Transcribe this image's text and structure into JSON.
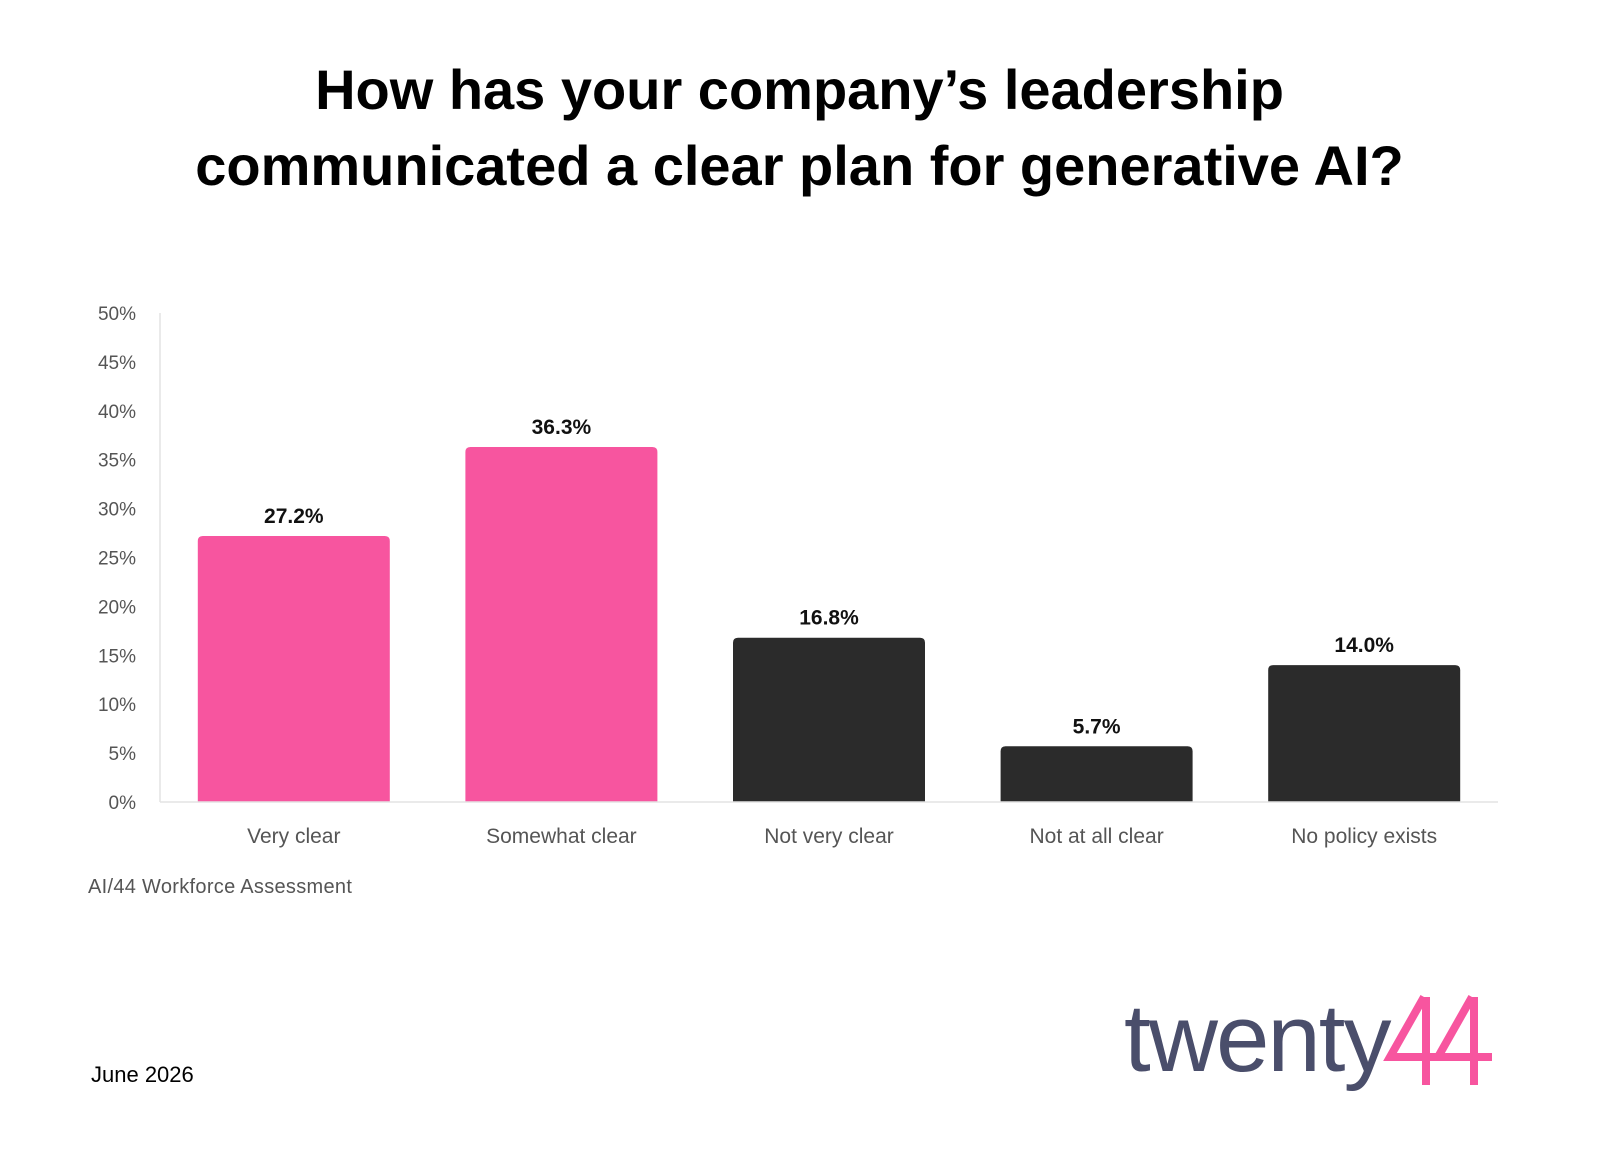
{
  "title": {
    "line1": "How has your company’s leadership",
    "line2": "communicated a clear plan for generative AI?"
  },
  "chart_data": {
    "type": "bar",
    "categories": [
      "Very clear",
      "Somewhat clear",
      "Not very clear",
      "Not at all clear",
      "No policy exists"
    ],
    "values": [
      27.2,
      36.3,
      16.8,
      5.7,
      14.0
    ],
    "value_labels": [
      "27.2%",
      "36.3%",
      "16.8%",
      "5.7%",
      "14.0%"
    ],
    "bar_colors": [
      "#f7559f",
      "#f7559f",
      "#2b2b2b",
      "#2b2b2b",
      "#2b2b2b"
    ],
    "ylim": [
      0,
      50
    ],
    "yticks": [
      "0%",
      "5%",
      "10%",
      "15%",
      "20%",
      "25%",
      "30%",
      "35%",
      "40%",
      "45%",
      "50%"
    ],
    "grid": false,
    "xlabel": "",
    "ylabel": ""
  },
  "source_note": "AI/44 Workforce Assessment",
  "date_label": "June 2026",
  "logo": {
    "text": "twenty44",
    "word_color": "#4a4e6b",
    "accent_color": "#f7559f"
  }
}
